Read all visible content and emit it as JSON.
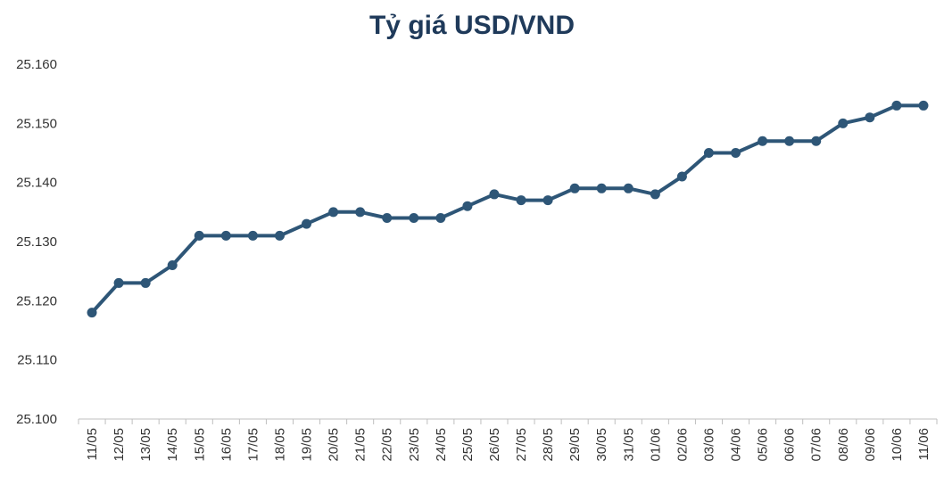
{
  "chart_data": {
    "type": "line",
    "title": "Tỷ giá USD/VND",
    "xlabel": "",
    "ylabel": "",
    "categories": [
      "11/05",
      "12/05",
      "13/05",
      "14/05",
      "15/05",
      "16/05",
      "17/05",
      "18/05",
      "19/05",
      "20/05",
      "21/05",
      "22/05",
      "23/05",
      "24/05",
      "25/05",
      "26/05",
      "27/05",
      "28/05",
      "29/05",
      "30/05",
      "31/05",
      "01/06",
      "02/06",
      "03/06",
      "04/06",
      "05/06",
      "06/06",
      "07/06",
      "08/06",
      "09/06",
      "10/06",
      "11/06"
    ],
    "series": [
      {
        "values": [
          25118,
          25123,
          25123,
          25126,
          25131,
          25131,
          25131,
          25131,
          25133,
          25135,
          25135,
          25134,
          25134,
          25134,
          25136,
          25138,
          25137,
          25137,
          25139,
          25139,
          25139,
          25138,
          25141,
          25145,
          25145,
          25147,
          25147,
          25147,
          25150,
          25151,
          25153,
          25153
        ],
        "color": "#2e5677"
      }
    ],
    "ylim": [
      25100,
      25160
    ],
    "yticks": [
      {
        "value": 25100,
        "label": "25.100"
      },
      {
        "value": 25110,
        "label": "25.110"
      },
      {
        "value": 25120,
        "label": "25.120"
      },
      {
        "value": 25130,
        "label": "25.130"
      },
      {
        "value": 25140,
        "label": "25.140"
      },
      {
        "value": 25150,
        "label": "25.150"
      },
      {
        "value": 25160,
        "label": "25.160"
      }
    ],
    "grid": false,
    "legend": "none"
  }
}
